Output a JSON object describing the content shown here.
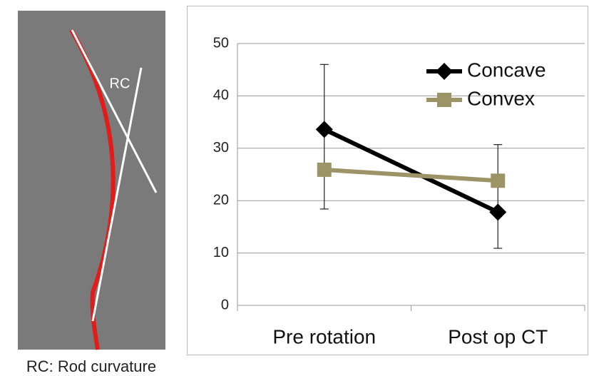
{
  "chart_data": {
    "type": "line",
    "categories": [
      "Pre rotation",
      "Post op CT"
    ],
    "series": [
      {
        "name": "Concave",
        "color": "#000000",
        "marker": "diamond",
        "values": [
          33.6,
          17.8
        ],
        "error_low": [
          18.4,
          10.9
        ],
        "error_high": [
          46.0,
          30.7
        ]
      },
      {
        "name": "Convex",
        "color": "#9c9466",
        "marker": "square",
        "values": [
          25.9,
          23.8
        ]
      }
    ],
    "ylim": [
      0,
      50
    ],
    "yticks": [
      0,
      10,
      20,
      30,
      40,
      50
    ],
    "grid": true
  },
  "figure": {
    "rc_label": "RC",
    "caption": "RC: Rod curvature"
  }
}
